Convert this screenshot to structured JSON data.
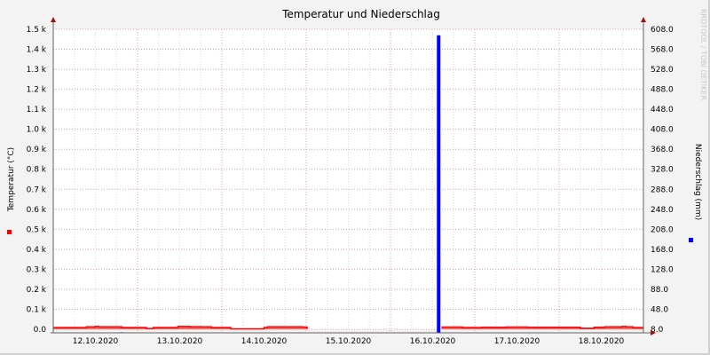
{
  "chart_data": {
    "type": "area",
    "title": "Temperatur und Niederschlag",
    "ylabel_left": "Temperatur (°C)",
    "ylabel_right": "Niederschlag (mm)",
    "watermark": "RRDTOOL / TOBI OETIKER",
    "x_tick_labels": [
      "12.10.2020",
      "13.10.2020",
      "14.10.2020",
      "15.10.2020",
      "16.10.2020",
      "17.10.2020",
      "18.10.2020"
    ],
    "x_range_hours_from": "12.10.2020 00:00",
    "x_range_hours": [
      0,
      168
    ],
    "y_left_ticks": [
      "0.0",
      "0.1 k",
      "0.2 k",
      "0.3 k",
      "0.4 k",
      "0.5 k",
      "0.6 k",
      "0.7 k",
      "0.8 k",
      "0.9 k",
      "1.0 k",
      "1.1 k",
      "1.2 k",
      "1.3 k",
      "1.4 k",
      "1.5 k"
    ],
    "y_left_range": [
      0,
      1500
    ],
    "y_right_ticks": [
      "8.0",
      "48.0",
      "88.0",
      "128.0",
      "168.0",
      "208.0",
      "248.0",
      "288.0",
      "328.0",
      "368.0",
      "408.0",
      "448.0",
      "488.0",
      "528.0",
      "568.0",
      "608.0"
    ],
    "y_right_range": [
      8,
      608
    ],
    "grid": true,
    "colors": {
      "temperature": "#ff0000",
      "temperature_fill": "#ff6060",
      "precipitation": "#0000ff",
      "background": "#f3f3f3",
      "plot": "#ffffff"
    },
    "series": [
      {
        "name": "Temperatur (°C)",
        "axis": "left",
        "points": [
          [
            0,
            9
          ],
          [
            9.5,
            12
          ],
          [
            12,
            14
          ],
          [
            13,
            12
          ],
          [
            19.5,
            9
          ],
          [
            26.5,
            4
          ],
          [
            28.5,
            9
          ],
          [
            35.5,
            14
          ],
          [
            39,
            13
          ],
          [
            42,
            12
          ],
          [
            45,
            9
          ],
          [
            50.5,
            2
          ],
          [
            60,
            9
          ],
          [
            61,
            12
          ],
          [
            71,
            11
          ],
          [
            72,
            9
          ],
          [
            72.5,
            null
          ],
          [
            110.5,
            11
          ],
          [
            116.5,
            9
          ],
          [
            120,
            9
          ],
          [
            122,
            10
          ],
          [
            129,
            11
          ],
          [
            135,
            10
          ],
          [
            144,
            10
          ],
          [
            150,
            5
          ],
          [
            154,
            10
          ],
          [
            157,
            12
          ],
          [
            162,
            14
          ],
          [
            163,
            12
          ],
          [
            165,
            9
          ],
          [
            168,
            null
          ]
        ]
      },
      {
        "name": "Niederschlag (mm)",
        "axis": "right",
        "bars": [
          [
            19,
            2
          ],
          [
            20,
            1
          ],
          [
            21,
            1
          ],
          [
            22,
            1
          ],
          [
            109.2,
            596
          ],
          [
            155,
            1
          ]
        ]
      }
    ]
  }
}
